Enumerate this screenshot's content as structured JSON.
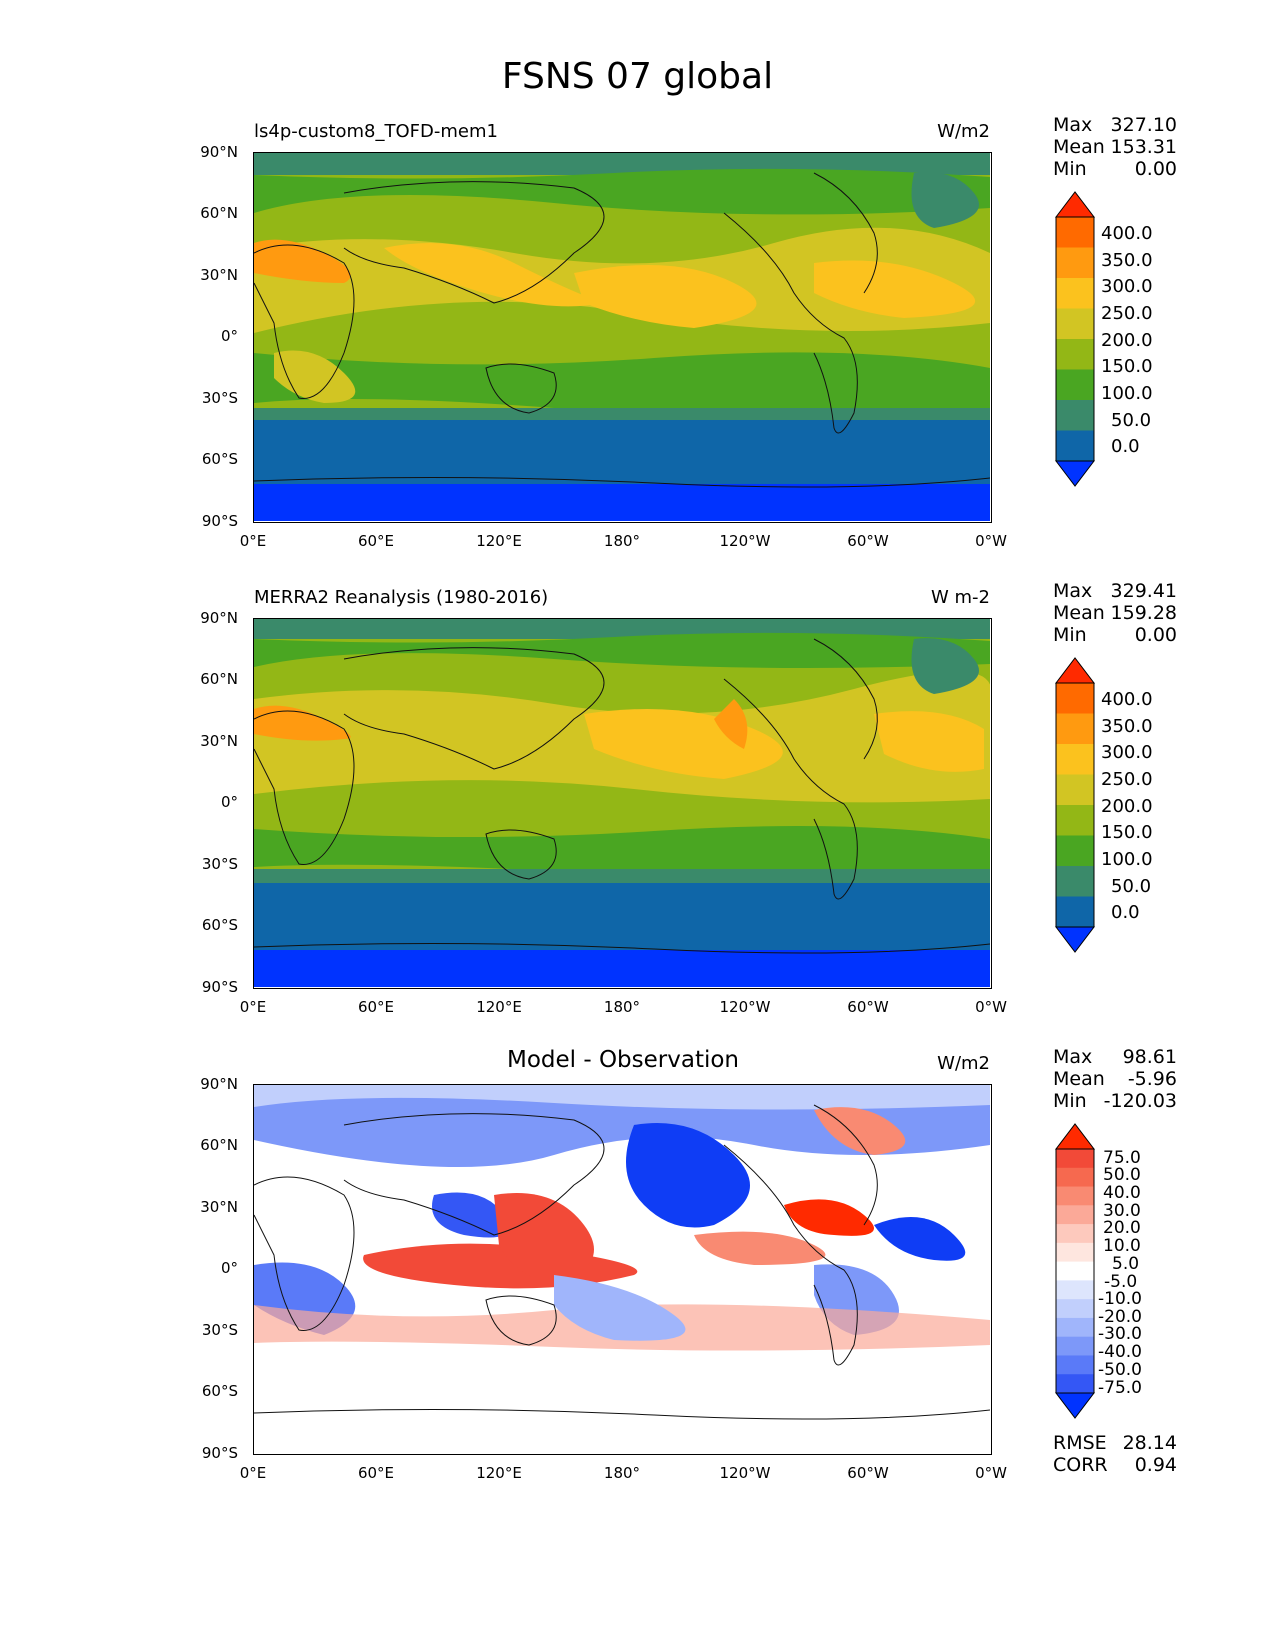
{
  "figure_title": "FSNS 07 global",
  "lat_ticks": [
    "90°N",
    "60°N",
    "30°N",
    "0°",
    "30°S",
    "60°S",
    "90°S"
  ],
  "lon_ticks": [
    "0°E",
    "60°E",
    "120°E",
    "180°",
    "120°W",
    "60°W",
    "0°W"
  ],
  "panels": [
    {
      "title": "ls4p-custom8_TOFD-mem1",
      "units": "W/m2",
      "stats": {
        "max_label": "Max",
        "max": "327.10",
        "mean_label": "Mean",
        "mean": "153.31",
        "min_label": "Min",
        "min": "0.00"
      }
    },
    {
      "title": "MERRA2 Reanalysis (1980-2016)",
      "units": "W m-2",
      "stats": {
        "max_label": "Max",
        "max": "329.41",
        "mean_label": "Mean",
        "mean": "159.28",
        "min_label": "Min",
        "min": "0.00"
      }
    },
    {
      "title": "Model - Observation",
      "units": "W/m2",
      "stats": {
        "max_label": "Max",
        "max": "98.61",
        "mean_label": "Mean",
        "mean": "-5.96",
        "min_label": "Min",
        "min": "-120.03"
      },
      "extra": {
        "rmse_label": "RMSE",
        "rmse": "28.14",
        "corr_label": "CORR",
        "corr": "0.94"
      }
    }
  ],
  "colorbar_main": {
    "labels": [
      "400.0",
      "350.0",
      "300.0",
      "250.0",
      "200.0",
      "150.0",
      "100.0",
      "50.0",
      "0.0"
    ],
    "colors": [
      "#ff2a00",
      "#ff6a00",
      "#ff9a10",
      "#fbc21e",
      "#d2c523",
      "#93b716",
      "#4aa622",
      "#3a8a6a",
      "#0f66a8",
      "#0033ff"
    ]
  },
  "colorbar_diff": {
    "labels": [
      "75.0",
      "50.0",
      "40.0",
      "30.0",
      "20.0",
      "10.0",
      "5.0",
      "-5.0",
      "-10.0",
      "-20.0",
      "-30.0",
      "-40.0",
      "-50.0",
      "-75.0"
    ],
    "colors": [
      "#ff2a00",
      "#f24a38",
      "#f6694f",
      "#f98a72",
      "#fba998",
      "#fdc9bd",
      "#fee6df",
      "#ffffff",
      "#dde5fd",
      "#c1cffc",
      "#a0b5fb",
      "#7d98f9",
      "#5a7af8",
      "#3457f5",
      "#0033ff"
    ]
  },
  "chart_data": [
    {
      "type": "heatmap",
      "title": "ls4p-custom8_TOFD-mem1",
      "units": "W/m2",
      "xlabel": "",
      "ylabel": "",
      "x_ticks": [
        "0°E",
        "60°E",
        "120°E",
        "180°",
        "120°W",
        "60°W",
        "0°W"
      ],
      "y_ticks": [
        "90°N",
        "60°N",
        "30°N",
        "0°",
        "30°S",
        "60°S",
        "90°S"
      ],
      "color_levels": [
        0,
        50,
        100,
        150,
        200,
        250,
        300,
        350,
        400
      ],
      "max": 327.1,
      "mean": 153.31,
      "min": 0.0
    },
    {
      "type": "heatmap",
      "title": "MERRA2 Reanalysis (1980-2016)",
      "units": "W m-2",
      "x_ticks": [
        "0°E",
        "60°E",
        "120°E",
        "180°",
        "120°W",
        "60°W",
        "0°W"
      ],
      "y_ticks": [
        "90°N",
        "60°N",
        "30°N",
        "0°",
        "30°S",
        "60°S",
        "90°S"
      ],
      "color_levels": [
        0,
        50,
        100,
        150,
        200,
        250,
        300,
        350,
        400
      ],
      "max": 329.41,
      "mean": 159.28,
      "min": 0.0
    },
    {
      "type": "heatmap",
      "title": "Model - Observation",
      "units": "W/m2",
      "x_ticks": [
        "0°E",
        "60°E",
        "120°E",
        "180°",
        "120°W",
        "60°W",
        "0°W"
      ],
      "y_ticks": [
        "90°N",
        "60°N",
        "30°N",
        "0°",
        "30°S",
        "60°S",
        "90°S"
      ],
      "color_levels": [
        -75,
        -50,
        -40,
        -30,
        -20,
        -10,
        -5,
        5,
        10,
        20,
        30,
        40,
        50,
        75
      ],
      "max": 98.61,
      "mean": -5.96,
      "min": -120.03,
      "rmse": 28.14,
      "corr": 0.94
    }
  ]
}
